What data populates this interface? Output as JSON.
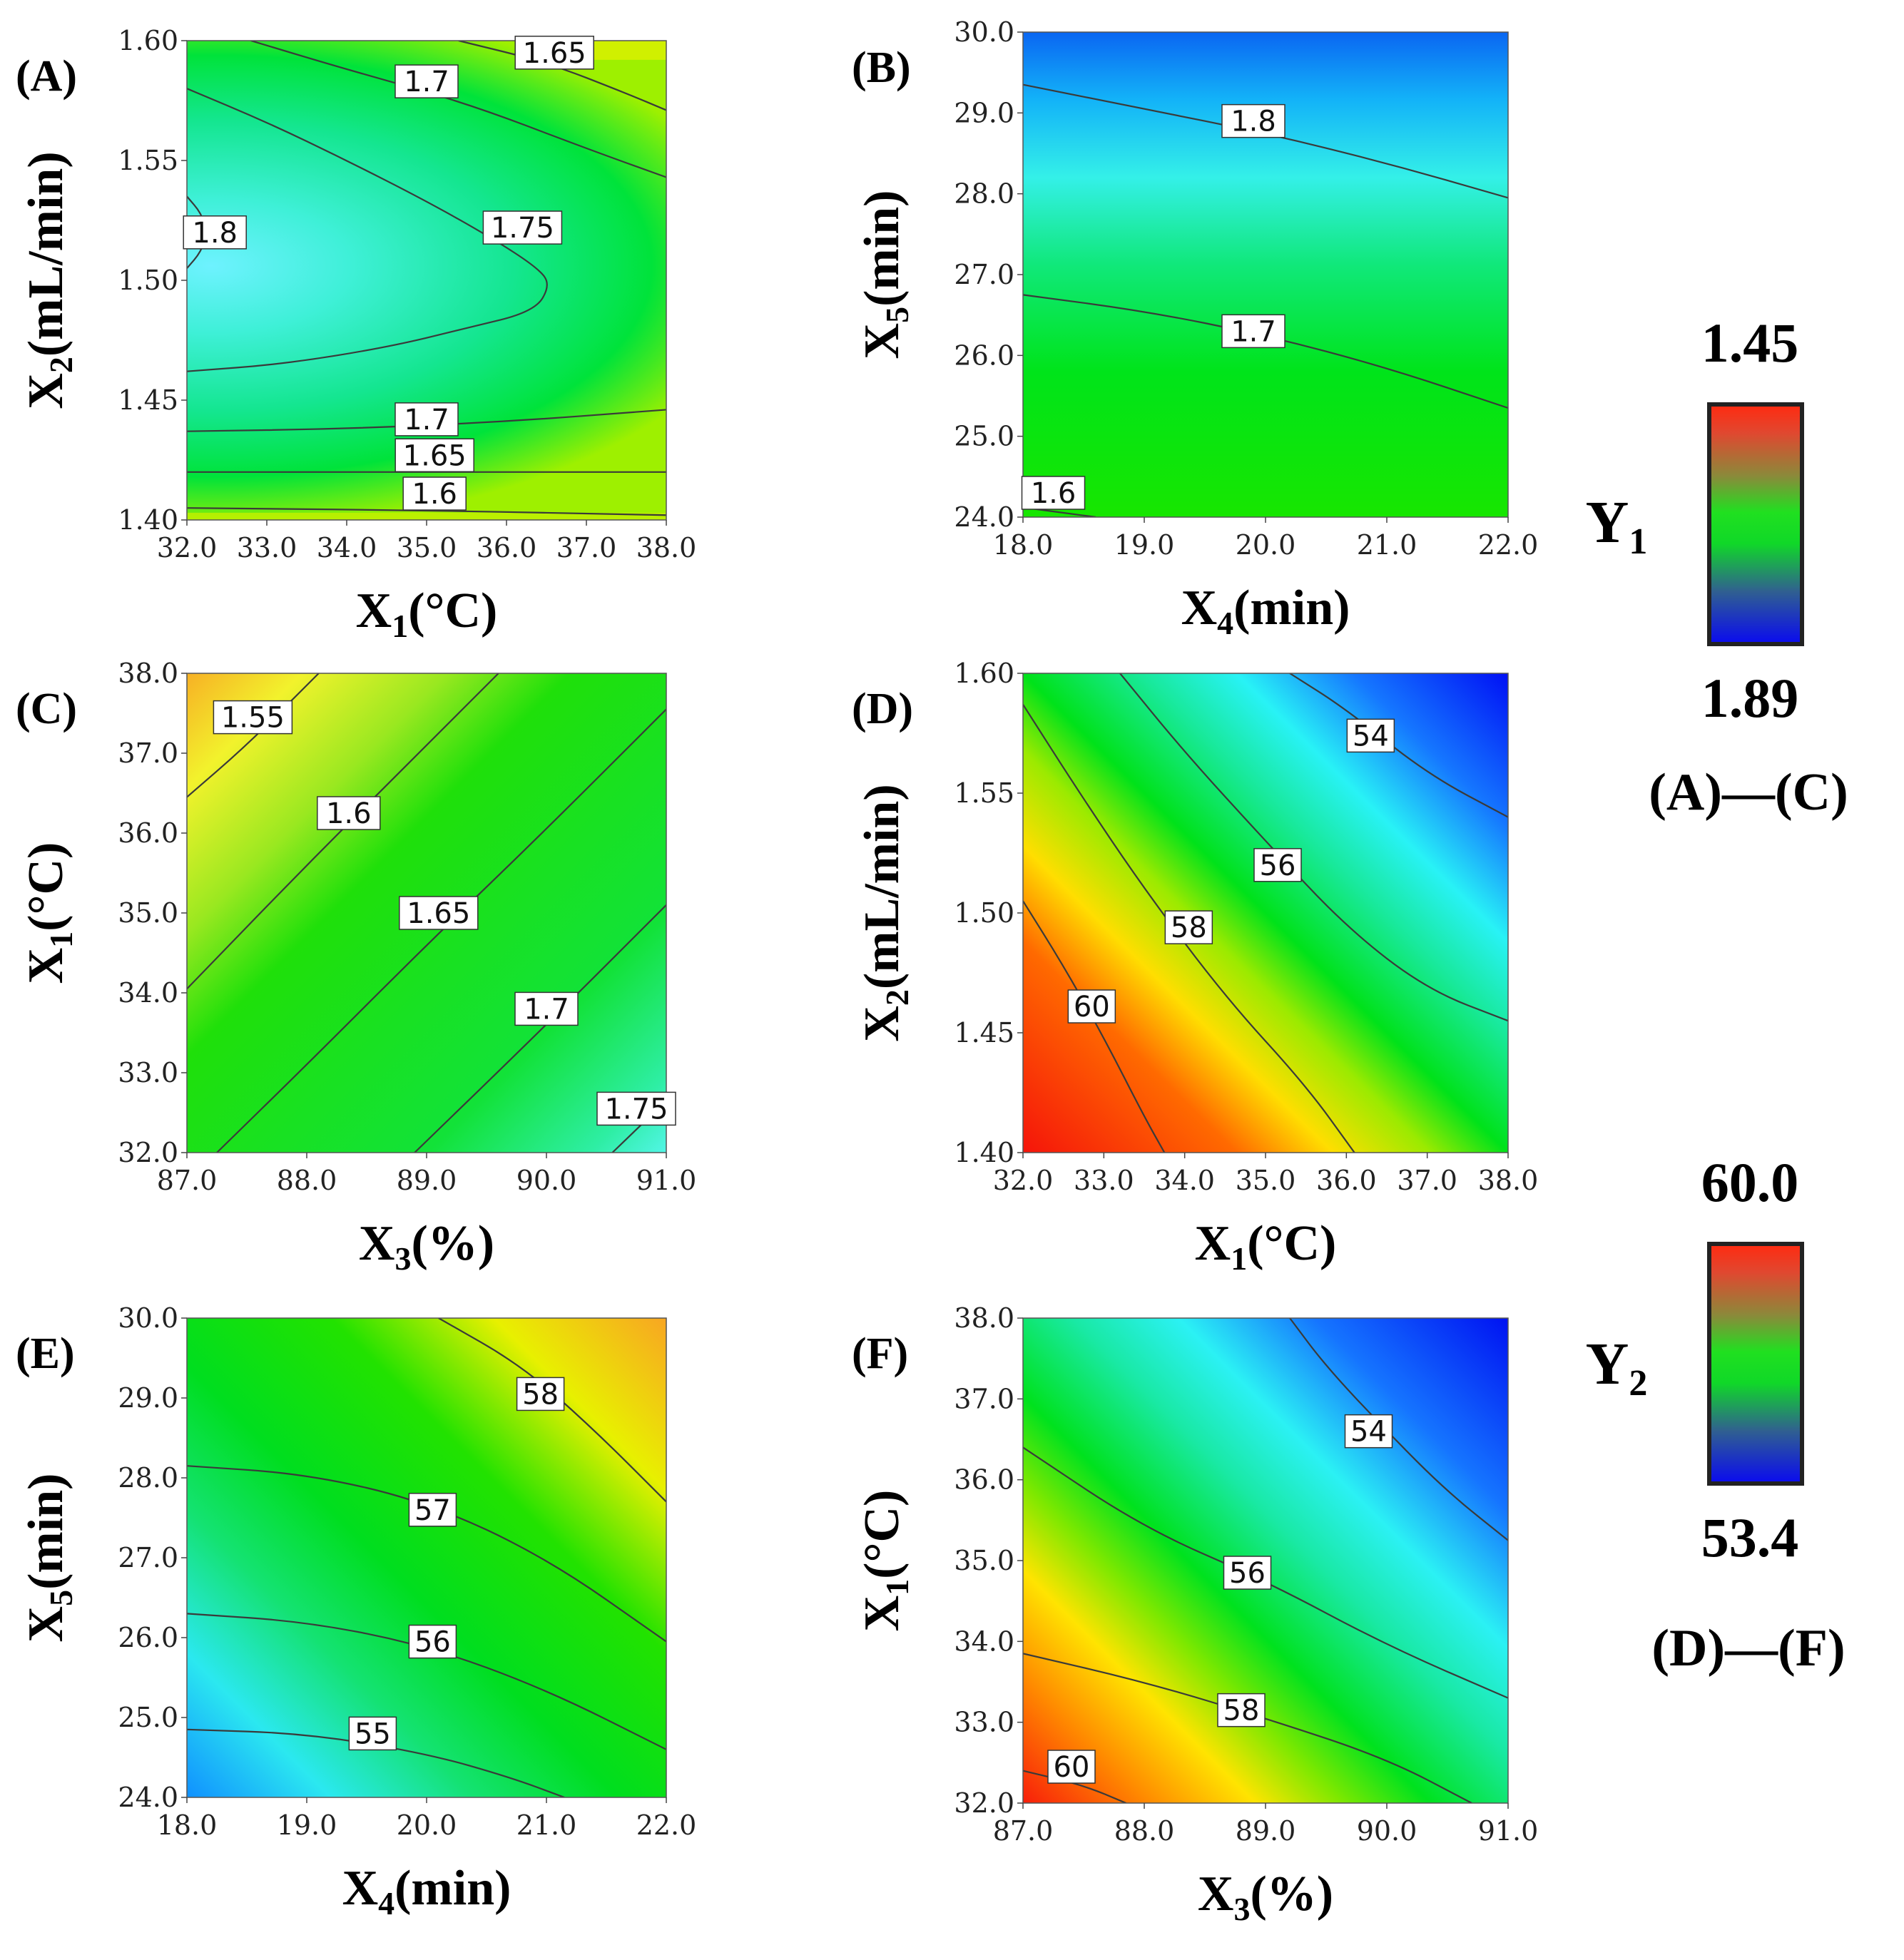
{
  "colors": {
    "red": "#ff1a00",
    "orange": "#ff9a00",
    "yellow": "#ffff00",
    "green": "#00e600",
    "cyan": "#00ffff",
    "blue": "#0000ff"
  },
  "legends": [
    {
      "response": "Y",
      "sub": "1",
      "top_value": "1.45",
      "bottom_value": "1.89",
      "panels": "(A)—(C)"
    },
    {
      "response": "Y",
      "sub": "2",
      "top_value": "60.0",
      "bottom_value": "53.4",
      "panels": "(D)—(F)"
    }
  ],
  "chart_data": [
    {
      "id": "A",
      "type": "heatmap",
      "panel_label": "(A)",
      "xlabel": {
        "main": "X",
        "sub": "1",
        "unit": "(°C)"
      },
      "ylabel": {
        "main": "X",
        "sub": "2",
        "unit": "(mL/min)"
      },
      "xlim": [
        32.0,
        38.0
      ],
      "ylim": [
        1.4,
        1.6
      ],
      "xticks": [
        "32.0",
        "33.0",
        "34.0",
        "35.0",
        "36.0",
        "37.0",
        "38.0"
      ],
      "yticks": [
        "1.40",
        "1.45",
        "1.50",
        "1.55",
        "1.60"
      ],
      "response": "Y1",
      "z_range": [
        1.45,
        1.89
      ],
      "contours": [
        {
          "label": "1.8",
          "label_at": [
            32.35,
            1.52
          ],
          "points": [
            [
              32.0,
              1.505
            ],
            [
              32.18,
              1.512
            ],
            [
              32.25,
              1.52
            ],
            [
              32.18,
              1.528
            ],
            [
              32.0,
              1.535
            ]
          ]
        },
        {
          "label": "1.75",
          "label_at": [
            36.2,
            1.522
          ],
          "points": [
            [
              32.0,
              1.58
            ],
            [
              33.0,
              1.566
            ],
            [
              34.0,
              1.55
            ],
            [
              35.0,
              1.533
            ],
            [
              35.8,
              1.518
            ],
            [
              36.4,
              1.505
            ],
            [
              36.55,
              1.498
            ],
            [
              36.35,
              1.487
            ],
            [
              35.5,
              1.48
            ],
            [
              34.5,
              1.472
            ],
            [
              33.2,
              1.465
            ],
            [
              32.0,
              1.462
            ]
          ]
        },
        {
          "label": "1.7",
          "label_at": [
            35.0,
            1.583
          ],
          "points": [
            [
              32.8,
              1.6
            ],
            [
              34.0,
              1.588
            ],
            [
              35.5,
              1.574
            ],
            [
              37.0,
              1.555
            ],
            [
              38.0,
              1.543
            ]
          ]
        },
        {
          "label": "1.65",
          "label_at": [
            36.6,
            1.595
          ],
          "points": [
            [
              35.4,
              1.6
            ],
            [
              36.5,
              1.591
            ],
            [
              37.5,
              1.578
            ],
            [
              38.0,
              1.571
            ]
          ]
        },
        {
          "label": "1.7",
          "label_at": [
            35.0,
            1.442
          ],
          "points": [
            [
              32.0,
              1.437
            ],
            [
              34.0,
              1.438
            ],
            [
              36.0,
              1.441
            ],
            [
              38.0,
              1.446
            ]
          ]
        },
        {
          "label": "1.65",
          "label_at": [
            35.1,
            1.427
          ],
          "points": [
            [
              32.0,
              1.42
            ],
            [
              35.0,
              1.42
            ],
            [
              38.0,
              1.42
            ]
          ]
        },
        {
          "label": "1.6",
          "label_at": [
            35.1,
            1.411
          ],
          "points": [
            [
              32.0,
              1.405
            ],
            [
              35.0,
              1.404
            ],
            [
              38.0,
              1.402
            ]
          ]
        }
      ]
    },
    {
      "id": "B",
      "type": "heatmap",
      "panel_label": "(B)",
      "xlabel": {
        "main": "X",
        "sub": "4",
        "unit": "(min)"
      },
      "ylabel": {
        "main": "X",
        "sub": "5",
        "unit": "(min)"
      },
      "xlim": [
        18.0,
        22.0
      ],
      "ylim": [
        24.0,
        30.0
      ],
      "xticks": [
        "18.0",
        "19.0",
        "20.0",
        "21.0",
        "22.0"
      ],
      "yticks": [
        "24.0",
        "25.0",
        "26.0",
        "27.0",
        "28.0",
        "29.0",
        "30.0"
      ],
      "response": "Y1",
      "z_range": [
        1.45,
        1.89
      ],
      "contours": [
        {
          "label": "1.8",
          "label_at": [
            19.9,
            28.9
          ],
          "points": [
            [
              18.0,
              29.35
            ],
            [
              19.0,
              29.05
            ],
            [
              20.0,
              28.75
            ],
            [
              21.0,
              28.38
            ],
            [
              22.0,
              27.95
            ]
          ]
        },
        {
          "label": "1.7",
          "label_at": [
            19.9,
            26.3
          ],
          "points": [
            [
              18.0,
              26.75
            ],
            [
              19.0,
              26.55
            ],
            [
              20.0,
              26.25
            ],
            [
              21.0,
              25.85
            ],
            [
              22.0,
              25.35
            ]
          ]
        },
        {
          "label": "1.6",
          "label_at": [
            18.25,
            24.3
          ],
          "points": [
            [
              18.0,
              24.12
            ],
            [
              18.35,
              24.05
            ],
            [
              18.6,
              24.0
            ]
          ]
        }
      ]
    },
    {
      "id": "C",
      "type": "heatmap",
      "panel_label": "(C)",
      "xlabel": {
        "main": "X",
        "sub": "3",
        "unit": "(%)"
      },
      "ylabel": {
        "main": "X",
        "sub": "1",
        "unit": "(°C)"
      },
      "xlim": [
        87.0,
        91.0
      ],
      "ylim": [
        32.0,
        38.0
      ],
      "xticks": [
        "87.0",
        "88.0",
        "89.0",
        "90.0",
        "91.0"
      ],
      "yticks": [
        "32.0",
        "33.0",
        "34.0",
        "35.0",
        "36.0",
        "37.0",
        "38.0"
      ],
      "response": "Y1",
      "z_range": [
        1.45,
        1.89
      ],
      "contours": [
        {
          "label": "1.55",
          "label_at": [
            87.55,
            37.45
          ],
          "points": [
            [
              87.0,
              36.45
            ],
            [
              87.5,
              37.1
            ],
            [
              88.0,
              37.85
            ],
            [
              88.1,
              38.0
            ]
          ]
        },
        {
          "label": "1.6",
          "label_at": [
            88.35,
            36.25
          ],
          "points": [
            [
              87.0,
              34.05
            ],
            [
              88.0,
              35.6
            ],
            [
              89.0,
              37.1
            ],
            [
              89.6,
              38.0
            ]
          ]
        },
        {
          "label": "1.65",
          "label_at": [
            89.1,
            35.0
          ],
          "points": [
            [
              87.25,
              32.0
            ],
            [
              88.0,
              33.1
            ],
            [
              89.0,
              34.6
            ],
            [
              90.0,
              36.05
            ],
            [
              91.0,
              37.55
            ]
          ]
        },
        {
          "label": "1.7",
          "label_at": [
            90.0,
            33.8
          ],
          "points": [
            [
              88.9,
              32.0
            ],
            [
              90.0,
              33.6
            ],
            [
              91.0,
              35.1
            ]
          ]
        },
        {
          "label": "1.75",
          "label_at": [
            90.75,
            32.55
          ],
          "points": [
            [
              90.55,
              32.0
            ],
            [
              91.0,
              32.65
            ]
          ]
        }
      ]
    },
    {
      "id": "D",
      "type": "heatmap",
      "panel_label": "(D)",
      "xlabel": {
        "main": "X",
        "sub": "1",
        "unit": "(°C)"
      },
      "ylabel": {
        "main": "X",
        "sub": "2",
        "unit": "(mL/min)"
      },
      "xlim": [
        32.0,
        38.0
      ],
      "ylim": [
        1.4,
        1.6
      ],
      "xticks": [
        "32.0",
        "33.0",
        "34.0",
        "35.0",
        "36.0",
        "37.0",
        "38.0"
      ],
      "yticks": [
        "1.40",
        "1.45",
        "1.50",
        "1.55",
        "1.60"
      ],
      "response": "Y2",
      "z_range": [
        53.4,
        60.0
      ],
      "contours": [
        {
          "label": "60",
          "label_at": [
            32.85,
            1.461
          ],
          "points": [
            [
              32.0,
              1.505
            ],
            [
              32.5,
              1.478
            ],
            [
              33.0,
              1.448
            ],
            [
              33.5,
              1.415
            ],
            [
              33.75,
              1.4
            ]
          ]
        },
        {
          "label": "58",
          "label_at": [
            34.05,
            1.494
          ],
          "points": [
            [
              32.0,
              1.587
            ],
            [
              32.7,
              1.55
            ],
            [
              33.5,
              1.51
            ],
            [
              34.5,
              1.465
            ],
            [
              35.5,
              1.428
            ],
            [
              36.1,
              1.4
            ]
          ]
        },
        {
          "label": "56",
          "label_at": [
            35.15,
            1.52
          ],
          "points": [
            [
              33.2,
              1.6
            ],
            [
              34.0,
              1.567
            ],
            [
              35.0,
              1.53
            ],
            [
              36.0,
              1.494
            ],
            [
              37.0,
              1.468
            ],
            [
              38.0,
              1.455
            ]
          ]
        },
        {
          "label": "54",
          "label_at": [
            36.3,
            1.574
          ],
          "points": [
            [
              35.3,
              1.6
            ],
            [
              36.0,
              1.585
            ],
            [
              37.0,
              1.558
            ],
            [
              38.0,
              1.54
            ]
          ]
        }
      ]
    },
    {
      "id": "E",
      "type": "heatmap",
      "panel_label": "(E)",
      "xlabel": {
        "main": "X",
        "sub": "4",
        "unit": "(min)"
      },
      "ylabel": {
        "main": "X",
        "sub": "5",
        "unit": "(min)"
      },
      "xlim": [
        18.0,
        22.0
      ],
      "ylim": [
        24.0,
        30.0
      ],
      "xticks": [
        "18.0",
        "19.0",
        "20.0",
        "21.0",
        "22.0"
      ],
      "yticks": [
        "24.0",
        "25.0",
        "26.0",
        "27.0",
        "28.0",
        "29.0",
        "30.0"
      ],
      "response": "Y2",
      "z_range": [
        53.4,
        60.0
      ],
      "contours": [
        {
          "label": "58",
          "label_at": [
            20.95,
            29.05
          ],
          "points": [
            [
              20.1,
              30.0
            ],
            [
              20.8,
              29.4
            ],
            [
              21.4,
              28.6
            ],
            [
              22.0,
              27.7
            ]
          ]
        },
        {
          "label": "57",
          "label_at": [
            20.05,
            27.6
          ],
          "points": [
            [
              18.0,
              28.15
            ],
            [
              19.0,
              28.05
            ],
            [
              20.0,
              27.7
            ],
            [
              21.0,
              27.0
            ],
            [
              22.0,
              25.95
            ]
          ]
        },
        {
          "label": "56",
          "label_at": [
            20.05,
            25.95
          ],
          "points": [
            [
              18.0,
              26.3
            ],
            [
              19.0,
              26.2
            ],
            [
              20.0,
              25.9
            ],
            [
              21.0,
              25.35
            ],
            [
              22.0,
              24.6
            ]
          ]
        },
        {
          "label": "55",
          "label_at": [
            19.55,
            24.8
          ],
          "points": [
            [
              18.0,
              24.85
            ],
            [
              19.0,
              24.8
            ],
            [
              20.0,
              24.55
            ],
            [
              20.7,
              24.25
            ],
            [
              21.15,
              24.0
            ]
          ]
        }
      ]
    },
    {
      "id": "F",
      "type": "heatmap",
      "panel_label": "(F)",
      "xlabel": {
        "main": "X",
        "sub": "3",
        "unit": "(%)"
      },
      "ylabel": {
        "main": "X",
        "sub": "1",
        "unit": "(°C)"
      },
      "xlim": [
        87.0,
        91.0
      ],
      "ylim": [
        32.0,
        38.0
      ],
      "xticks": [
        "87.0",
        "88.0",
        "89.0",
        "90.0",
        "91.0"
      ],
      "yticks": [
        "32.0",
        "33.0",
        "34.0",
        "35.0",
        "36.0",
        "37.0",
        "38.0"
      ],
      "response": "Y2",
      "z_range": [
        53.4,
        60.0
      ],
      "contours": [
        {
          "label": "60",
          "label_at": [
            87.4,
            32.45
          ],
          "points": [
            [
              87.0,
              32.4
            ],
            [
              87.5,
              32.22
            ],
            [
              87.85,
              32.0
            ]
          ]
        },
        {
          "label": "58",
          "label_at": [
            88.8,
            33.15
          ],
          "points": [
            [
              87.0,
              33.85
            ],
            [
              88.0,
              33.5
            ],
            [
              89.0,
              33.05
            ],
            [
              90.0,
              32.55
            ],
            [
              90.7,
              32.0
            ]
          ]
        },
        {
          "label": "56",
          "label_at": [
            88.85,
            34.85
          ],
          "points": [
            [
              87.0,
              36.4
            ],
            [
              88.0,
              35.4
            ],
            [
              89.0,
              34.75
            ],
            [
              90.0,
              33.95
            ],
            [
              91.0,
              33.3
            ]
          ]
        },
        {
          "label": "54",
          "label_at": [
            89.85,
            36.6
          ],
          "points": [
            [
              89.2,
              38.0
            ],
            [
              89.5,
              37.4
            ],
            [
              90.0,
              36.6
            ],
            [
              90.5,
              35.85
            ],
            [
              91.0,
              35.25
            ]
          ]
        }
      ]
    }
  ]
}
